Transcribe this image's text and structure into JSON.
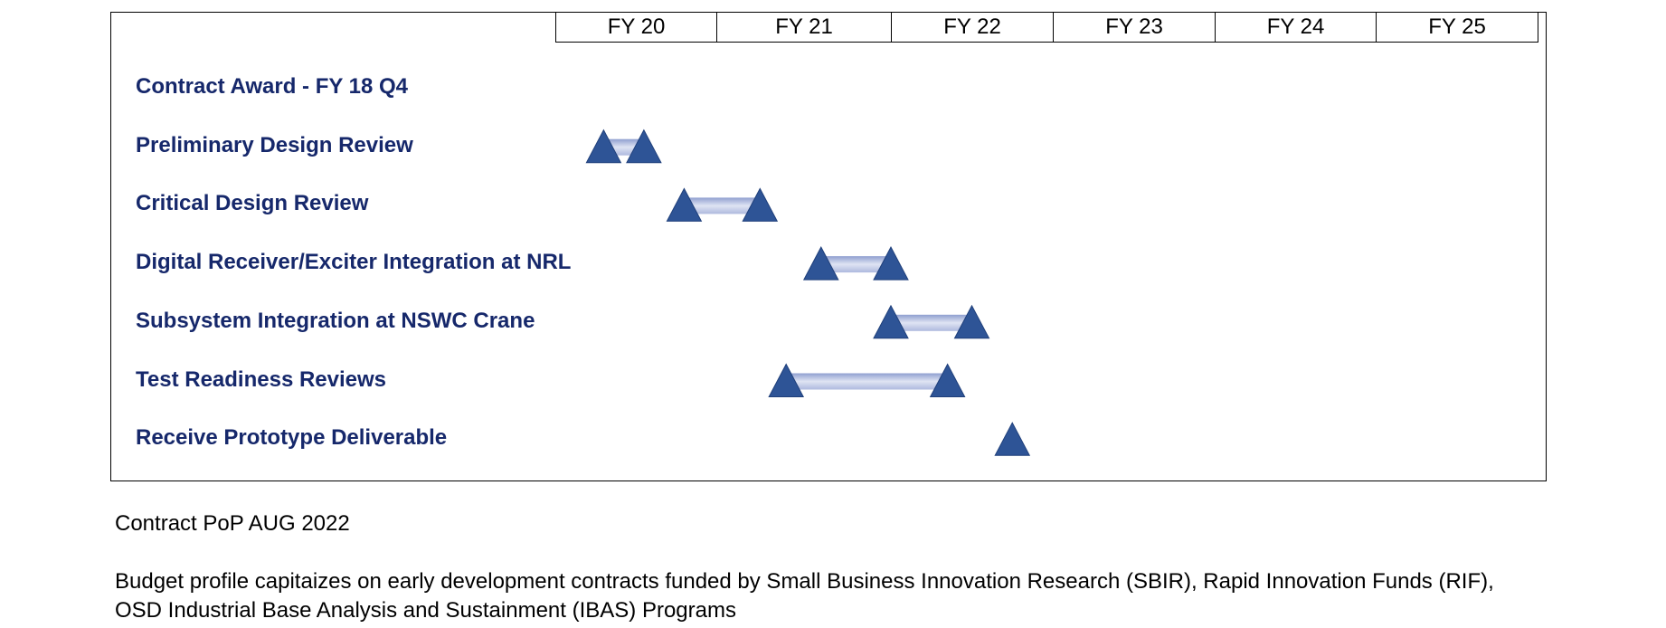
{
  "chart_data": {
    "type": "gantt",
    "periods": [
      "FY 20",
      "FY 21",
      "FY 22",
      "FY 23",
      "FY 24",
      "FY 25"
    ],
    "tasks": [
      {
        "label": "Contract Award - FY 18 Q4",
        "start": null,
        "end": null
      },
      {
        "label": "Preliminary Design Review",
        "start": 20.3,
        "end": 20.55
      },
      {
        "label": "Critical Design Review",
        "start": 20.8,
        "end": 21.25
      },
      {
        "label": "Digital Receiver/Exciter Integration at NRL",
        "start": 21.6,
        "end": 22.0
      },
      {
        "label": "Subsystem Integration at NSWC Crane",
        "start": 22.0,
        "end": 22.5
      },
      {
        "label": "Test Readiness Reviews",
        "start": 21.4,
        "end": 22.35
      },
      {
        "label": "Receive Prototype Deliverable",
        "start": 22.75,
        "end": null
      }
    ],
    "milestone_color": "#2e5496",
    "bar_color": "#c5cde6"
  },
  "notes": {
    "pop": "Contract PoP AUG 2022",
    "budget": "Budget profile capitaizes on early development contracts funded by Small Business Innovation Research (SBIR), Rapid Innovation Funds (RIF), OSD Industrial Base Analysis and Sustainment (IBAS) Programs"
  }
}
